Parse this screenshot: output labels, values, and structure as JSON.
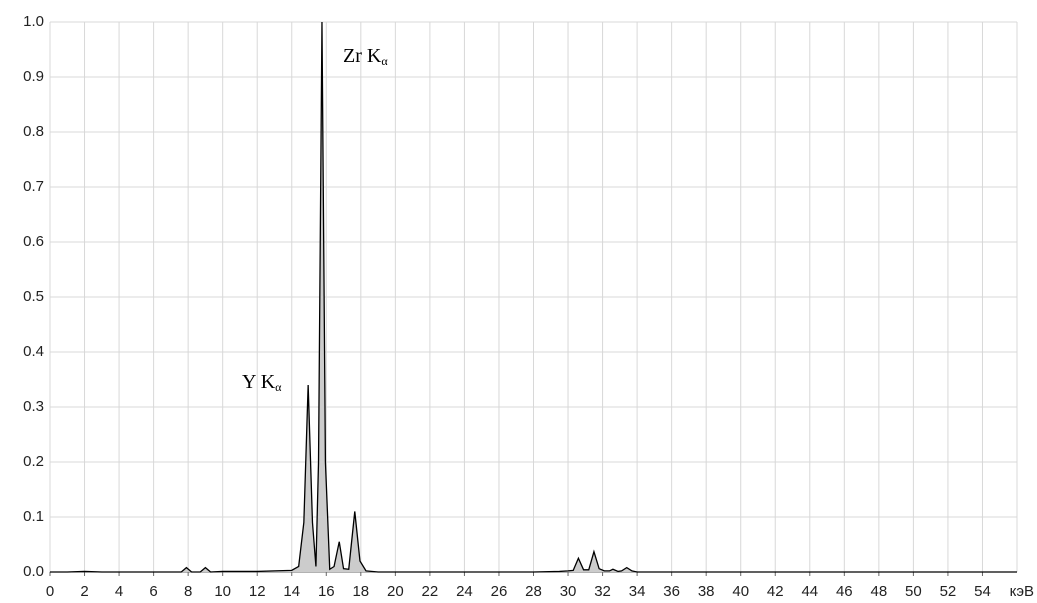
{
  "chart_data": {
    "type": "area",
    "x_label": "кэВ",
    "annotations": [
      {
        "text": "Zr K",
        "subscript": "α"
      },
      {
        "text": "Y K",
        "subscript": "α"
      }
    ],
    "x": [
      0,
      1,
      2,
      3,
      4,
      5,
      6,
      7,
      7.6,
      7.9,
      8.2,
      8.7,
      9.0,
      9.3,
      10,
      11,
      12,
      13,
      14,
      14.4,
      14.7,
      14.95,
      15.2,
      15.4,
      15.55,
      15.75,
      15.95,
      16.2,
      16.45,
      16.75,
      17.0,
      17.3,
      17.65,
      17.95,
      18.3,
      19,
      20,
      22,
      25,
      28,
      29.5,
      30,
      30.3,
      30.6,
      30.9,
      31.2,
      31.5,
      31.8,
      32.1,
      32.4,
      32.6,
      32.9,
      33.1,
      33.4,
      33.7,
      34,
      35,
      40,
      45,
      50,
      55,
      56
    ],
    "series": [
      {
        "color": "#cccccc",
        "line_color": "#000000",
        "values": [
          0,
          0,
          0.001,
          0,
          0,
          0,
          0,
          0,
          0,
          0.008,
          0,
          0,
          0.008,
          0,
          0.001,
          0.001,
          0.001,
          0.002,
          0.003,
          0.01,
          0.09,
          0.34,
          0.09,
          0.01,
          0.2,
          1.0,
          0.2,
          0.005,
          0.01,
          0.055,
          0.006,
          0.005,
          0.11,
          0.02,
          0.002,
          0,
          0,
          0,
          0,
          0,
          0.001,
          0.002,
          0.003,
          0.025,
          0.004,
          0.004,
          0.037,
          0.006,
          0.002,
          0.002,
          0.005,
          0.001,
          0.002,
          0.008,
          0.002,
          0,
          0,
          0,
          0,
          0,
          0,
          0
        ]
      }
    ],
    "xlim": [
      0,
      56
    ],
    "xticks": [
      0,
      2,
      4,
      6,
      8,
      10,
      12,
      14,
      16,
      18,
      20,
      22,
      24,
      26,
      28,
      30,
      32,
      34,
      36,
      38,
      40,
      42,
      44,
      46,
      48,
      50,
      52,
      54
    ],
    "ylim": [
      0,
      1
    ],
    "yticks": [
      {
        "value": 0,
        "label": "0.0"
      },
      0.1,
      0.2,
      0.3,
      0.4,
      0.5,
      0.6,
      0.7,
      0.8,
      0.9,
      {
        "value": 1,
        "label": "1.0"
      }
    ],
    "grid": true
  }
}
